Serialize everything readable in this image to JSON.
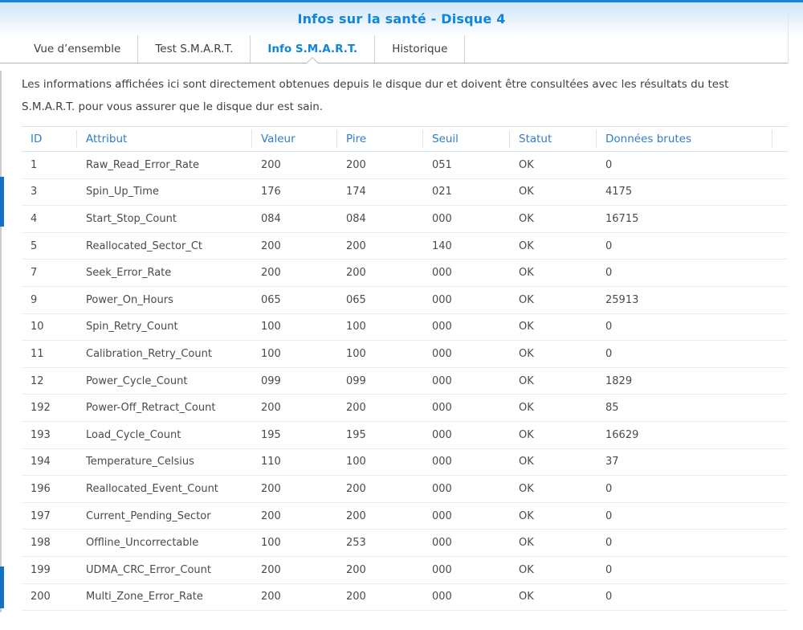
{
  "window": {
    "title": "Infos sur la santé - Disque 4"
  },
  "tabs": [
    {
      "label": "Vue d’ensemble",
      "active": false
    },
    {
      "label": "Test S.M.A.R.T.",
      "active": false
    },
    {
      "label": "Info S.M.A.R.T.",
      "active": true
    },
    {
      "label": "Historique",
      "active": false
    }
  ],
  "description": "Les informations affichées ici sont directement obtenues depuis le disque dur et doivent être consultées avec les résultats du test S.M.A.R.T. pour vous assurer que le disque dur est sain.",
  "table": {
    "columns": [
      "ID",
      "Attribut",
      "Valeur",
      "Pire",
      "Seuil",
      "Statut",
      "Données brutes"
    ],
    "rows": [
      [
        "1",
        "Raw_Read_Error_Rate",
        "200",
        "200",
        "051",
        "OK",
        "0"
      ],
      [
        "3",
        "Spin_Up_Time",
        "176",
        "174",
        "021",
        "OK",
        "4175"
      ],
      [
        "4",
        "Start_Stop_Count",
        "084",
        "084",
        "000",
        "OK",
        "16715"
      ],
      [
        "5",
        "Reallocated_Sector_Ct",
        "200",
        "200",
        "140",
        "OK",
        "0"
      ],
      [
        "7",
        "Seek_Error_Rate",
        "200",
        "200",
        "000",
        "OK",
        "0"
      ],
      [
        "9",
        "Power_On_Hours",
        "065",
        "065",
        "000",
        "OK",
        "25913"
      ],
      [
        "10",
        "Spin_Retry_Count",
        "100",
        "100",
        "000",
        "OK",
        "0"
      ],
      [
        "11",
        "Calibration_Retry_Count",
        "100",
        "100",
        "000",
        "OK",
        "0"
      ],
      [
        "12",
        "Power_Cycle_Count",
        "099",
        "099",
        "000",
        "OK",
        "1829"
      ],
      [
        "192",
        "Power-Off_Retract_Count",
        "200",
        "200",
        "000",
        "OK",
        "85"
      ],
      [
        "193",
        "Load_Cycle_Count",
        "195",
        "195",
        "000",
        "OK",
        "16629"
      ],
      [
        "194",
        "Temperature_Celsius",
        "110",
        "100",
        "000",
        "OK",
        "37"
      ],
      [
        "196",
        "Reallocated_Event_Count",
        "200",
        "200",
        "000",
        "OK",
        "0"
      ],
      [
        "197",
        "Current_Pending_Sector",
        "200",
        "200",
        "000",
        "OK",
        "0"
      ],
      [
        "198",
        "Offline_Uncorrectable",
        "100",
        "253",
        "000",
        "OK",
        "0"
      ],
      [
        "199",
        "UDMA_CRC_Error_Count",
        "200",
        "200",
        "000",
        "OK",
        "0"
      ],
      [
        "200",
        "Multi_Zone_Error_Rate",
        "200",
        "200",
        "000",
        "OK",
        "0"
      ]
    ]
  },
  "colors": {
    "top_bar": "#1585dd",
    "accent_blue": "#0e86db",
    "table_header_blue": "#2e7dc7",
    "body_text": "#4a4a4a",
    "header_gradient_top": "#d3e6f8",
    "row_separator": "#e7edf4",
    "edge_blue": "#1371c6"
  }
}
